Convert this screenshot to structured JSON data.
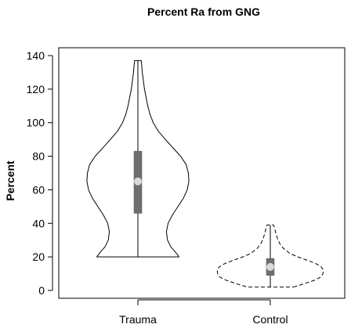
{
  "chart_data": {
    "type": "violin",
    "title": "Percent Ra from GNG",
    "xlabel": "",
    "ylabel": "Percent",
    "ylim": [
      0,
      140
    ],
    "yticks": [
      0,
      20,
      40,
      60,
      80,
      100,
      120,
      140
    ],
    "ytick_labels": [
      "0",
      "20",
      "40",
      "60",
      "80",
      "100",
      "120",
      "140"
    ],
    "grid": false,
    "legend": "none",
    "categories": [
      "Trauma",
      "Control"
    ],
    "series": [
      {
        "category": "Trauma",
        "min": 20,
        "max": 137,
        "q1": 46,
        "median": 65,
        "q3": 83,
        "outline_style": "solid",
        "density": [
          [
            20,
            0.75
          ],
          [
            23,
            0.68
          ],
          [
            26,
            0.6
          ],
          [
            30,
            0.54
          ],
          [
            35,
            0.52
          ],
          [
            40,
            0.55
          ],
          [
            45,
            0.63
          ],
          [
            50,
            0.73
          ],
          [
            55,
            0.83
          ],
          [
            60,
            0.9
          ],
          [
            65,
            0.93
          ],
          [
            70,
            0.92
          ],
          [
            75,
            0.88
          ],
          [
            80,
            0.78
          ],
          [
            85,
            0.64
          ],
          [
            90,
            0.5
          ],
          [
            95,
            0.37
          ],
          [
            100,
            0.28
          ],
          [
            105,
            0.22
          ],
          [
            110,
            0.18
          ],
          [
            115,
            0.15
          ],
          [
            120,
            0.12
          ],
          [
            125,
            0.1
          ],
          [
            130,
            0.08
          ],
          [
            134,
            0.07
          ],
          [
            137,
            0.06
          ]
        ]
      },
      {
        "category": "Control",
        "min": 2,
        "max": 39,
        "q1": 9,
        "median": 14,
        "q3": 19,
        "outline_style": "dashed",
        "density": [
          [
            2,
            0.42
          ],
          [
            4,
            0.62
          ],
          [
            6,
            0.8
          ],
          [
            8,
            0.92
          ],
          [
            10,
            0.96
          ],
          [
            12,
            0.97
          ],
          [
            14,
            0.93
          ],
          [
            16,
            0.83
          ],
          [
            18,
            0.67
          ],
          [
            20,
            0.5
          ],
          [
            22,
            0.36
          ],
          [
            25,
            0.24
          ],
          [
            28,
            0.17
          ],
          [
            31,
            0.13
          ],
          [
            34,
            0.1
          ],
          [
            37,
            0.08
          ],
          [
            39,
            0.06
          ]
        ]
      }
    ]
  },
  "colors": {
    "box": "#6e6e6e",
    "median_point": "#d9d9d9",
    "outline": "#000000",
    "background": "#ffffff"
  }
}
